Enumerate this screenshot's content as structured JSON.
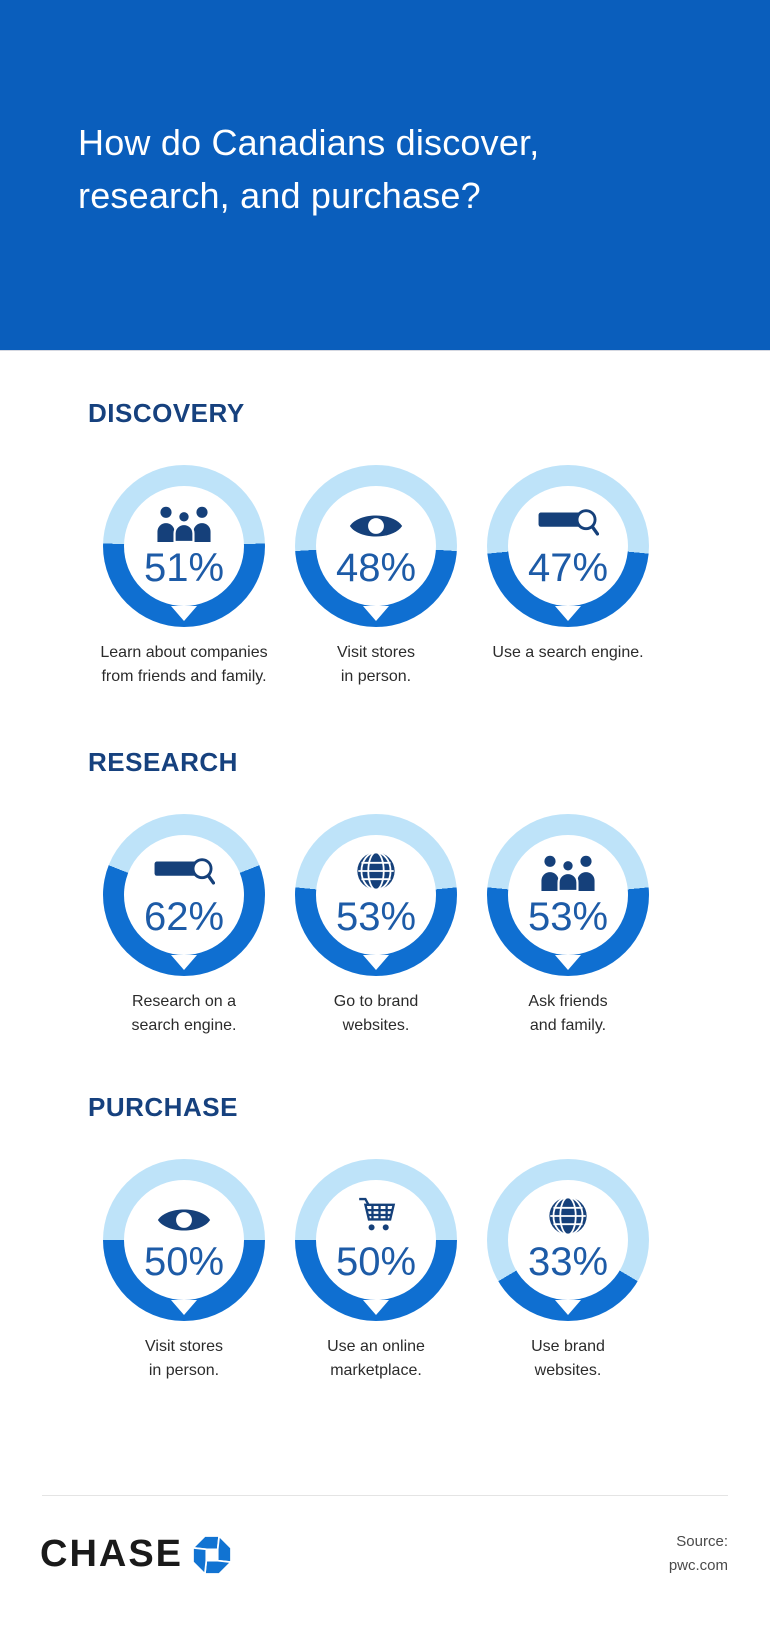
{
  "header": {
    "title_line1": "How do Canadians discover,",
    "title_line2": "research, and purchase?"
  },
  "sections": [
    {
      "heading": "DISCOVERY",
      "items": [
        {
          "icon": "people-icon",
          "percent": 51,
          "percent_label": "51%",
          "label_line1": "Learn about companies",
          "label_line2": "from friends and family."
        },
        {
          "icon": "eye-icon",
          "percent": 48,
          "percent_label": "48%",
          "label_line1": "Visit stores",
          "label_line2": "in person."
        },
        {
          "icon": "search-icon",
          "percent": 47,
          "percent_label": "47%",
          "label_line1": "Use a search engine.",
          "label_line2": ""
        }
      ]
    },
    {
      "heading": "RESEARCH",
      "items": [
        {
          "icon": "search-icon",
          "percent": 62,
          "percent_label": "62%",
          "label_line1": "Research on a",
          "label_line2": "search engine."
        },
        {
          "icon": "globe-icon",
          "percent": 53,
          "percent_label": "53%",
          "label_line1": "Go to brand",
          "label_line2": "websites."
        },
        {
          "icon": "people-icon",
          "percent": 53,
          "percent_label": "53%",
          "label_line1": "Ask friends",
          "label_line2": "and family."
        }
      ]
    },
    {
      "heading": "PURCHASE",
      "items": [
        {
          "icon": "eye-icon",
          "percent": 50,
          "percent_label": "50%",
          "label_line1": "Visit stores",
          "label_line2": "in person."
        },
        {
          "icon": "cart-icon",
          "percent": 50,
          "percent_label": "50%",
          "label_line1": "Use an online",
          "label_line2": "marketplace."
        },
        {
          "icon": "globe-icon",
          "percent": 33,
          "percent_label": "33%",
          "label_line1": "Use brand",
          "label_line2": "websites."
        }
      ]
    }
  ],
  "footer": {
    "brand": "CHASE",
    "source_line1": "Source:",
    "source_line2": "pwc.com"
  },
  "colors": {
    "header_bg": "#0A5EBC",
    "ring_fill": "#0F6FD1",
    "ring_track": "#BEE3F9",
    "heading_navy": "#16417E",
    "percent_blue": "#1D5BA7",
    "icon_navy": "#15407A",
    "text_dark": "#2B2B2B",
    "chase_logo_blue": "#1173D2"
  },
  "chart_data": [
    {
      "type": "pie",
      "title": "DISCOVERY",
      "categories": [
        "Learn about companies from friends and family.",
        "Visit stores in person.",
        "Use a search engine."
      ],
      "values": [
        51,
        48,
        47
      ],
      "unit": "%",
      "note": "each value rendered as its own donut, dark arc = value, centered at bottom"
    },
    {
      "type": "pie",
      "title": "RESEARCH",
      "categories": [
        "Research on a search engine.",
        "Go to brand websites.",
        "Ask friends and family."
      ],
      "values": [
        62,
        53,
        53
      ],
      "unit": "%"
    },
    {
      "type": "pie",
      "title": "PURCHASE",
      "categories": [
        "Visit stores in person.",
        "Use an online marketplace.",
        "Use brand websites."
      ],
      "values": [
        50,
        50,
        33
      ],
      "unit": "%"
    }
  ]
}
